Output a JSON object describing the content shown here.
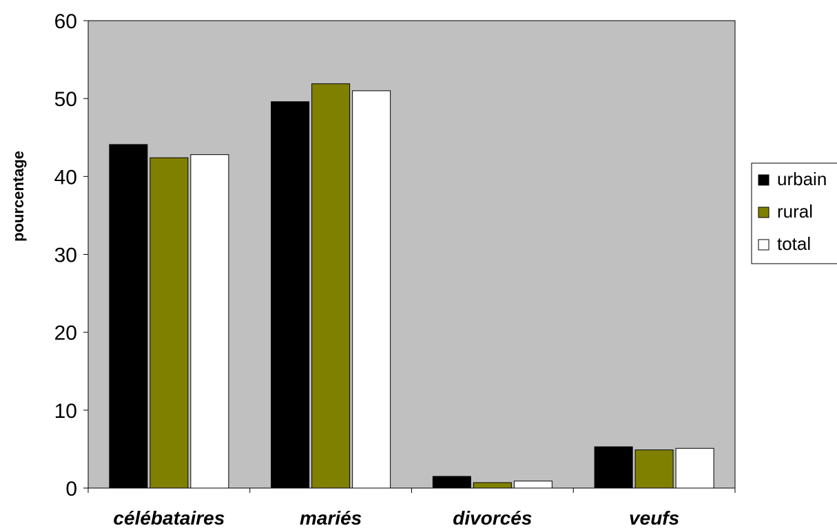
{
  "chart_data": {
    "type": "bar",
    "categories": [
      "célébataires",
      "mariés",
      "divorcés",
      "veufs"
    ],
    "series": [
      {
        "name": "urbain",
        "color": "#000000",
        "values": [
          44.1,
          49.6,
          1.5,
          5.3
        ]
      },
      {
        "name": "rural",
        "color": "#808000",
        "values": [
          42.4,
          51.9,
          0.7,
          4.9
        ]
      },
      {
        "name": "total",
        "color": "#ffffff",
        "values": [
          42.8,
          51.0,
          0.9,
          5.1
        ]
      }
    ],
    "ylabel": "pourcentage",
    "xlabel": "",
    "ylim": [
      0,
      60
    ],
    "yticks": [
      0,
      10,
      20,
      30,
      40,
      50,
      60
    ],
    "plot_background": "#c0c0c0",
    "grid": false,
    "legend_position": "right"
  }
}
